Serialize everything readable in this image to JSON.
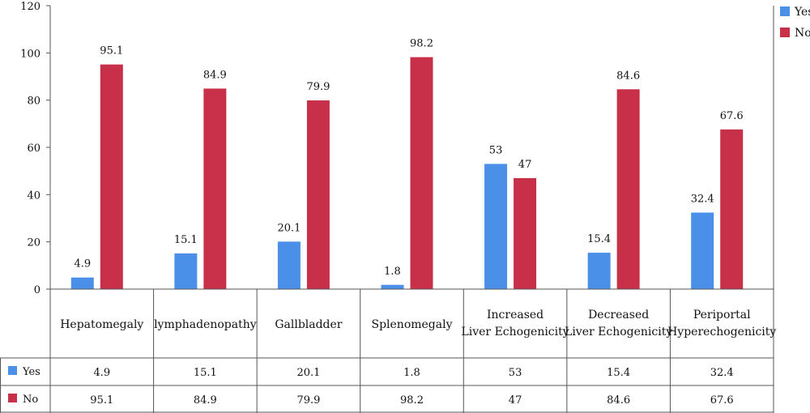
{
  "chart_data": {
    "type": "bar",
    "categories": [
      [
        "Hepatomegaly"
      ],
      [
        "lymphadenopathy"
      ],
      [
        "Gallbladder"
      ],
      [
        "Splenomegaly"
      ],
      [
        "Increased",
        "Liver Echogenicity"
      ],
      [
        "Decreased",
        "Liver Echogenicity"
      ],
      [
        "Periportal",
        "Hyperechogenicity"
      ]
    ],
    "series": [
      {
        "name": "Yes",
        "color": "#4a90e8",
        "values": [
          4.9,
          15.1,
          20.1,
          1.8,
          53,
          15.4,
          32.4
        ]
      },
      {
        "name": "No",
        "color": "#c8304a",
        "values": [
          95.1,
          84.9,
          79.9,
          98.2,
          47,
          84.6,
          67.6
        ]
      }
    ],
    "ylim": [
      0,
      120
    ],
    "yticks": [
      0,
      20,
      40,
      60,
      80,
      100,
      120
    ],
    "grid": false,
    "legend": "top-right",
    "data_table": true
  }
}
